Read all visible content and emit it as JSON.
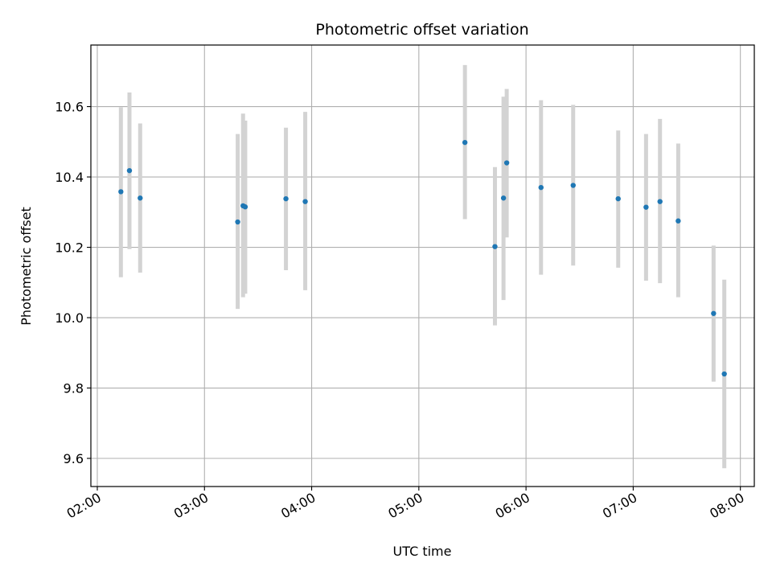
{
  "chart_data": {
    "type": "scatter",
    "title": "Photometric offset variation",
    "xlabel": "UTC time",
    "ylabel": "Photometric offset",
    "x_unit": "hours UTC",
    "xlim": [
      1.94,
      8.13
    ],
    "ylim": [
      9.52,
      10.775
    ],
    "grid": true,
    "legend": "none",
    "x_ticks": [
      {
        "value": 2,
        "label": "02:00"
      },
      {
        "value": 3,
        "label": "03:00"
      },
      {
        "value": 4,
        "label": "04:00"
      },
      {
        "value": 5,
        "label": "05:00"
      },
      {
        "value": 6,
        "label": "06:00"
      },
      {
        "value": 7,
        "label": "07:00"
      },
      {
        "value": 8,
        "label": "08:00"
      }
    ],
    "y_ticks": [
      {
        "value": 9.6,
        "label": "9.6"
      },
      {
        "value": 9.8,
        "label": "9.8"
      },
      {
        "value": 10.0,
        "label": "10.0"
      },
      {
        "value": 10.2,
        "label": "10.2"
      },
      {
        "value": 10.4,
        "label": "10.4"
      },
      {
        "value": 10.6,
        "label": "10.6"
      }
    ],
    "colors": {
      "point": "#1f77b4",
      "errorbar": "#d3d3d3",
      "grid": "#b0b0b0"
    },
    "points": [
      {
        "x": 2.22,
        "y": 10.358,
        "ylow": 10.115,
        "yhigh": 10.598
      },
      {
        "x": 2.3,
        "y": 10.418,
        "ylow": 10.195,
        "yhigh": 10.64
      },
      {
        "x": 2.4,
        "y": 10.34,
        "ylow": 10.128,
        "yhigh": 10.552
      },
      {
        "x": 3.31,
        "y": 10.272,
        "ylow": 10.025,
        "yhigh": 10.522
      },
      {
        "x": 3.36,
        "y": 10.318,
        "ylow": 10.058,
        "yhigh": 10.58
      },
      {
        "x": 3.38,
        "y": 10.315,
        "ylow": 10.068,
        "yhigh": 10.56
      },
      {
        "x": 3.76,
        "y": 10.338,
        "ylow": 10.135,
        "yhigh": 10.54
      },
      {
        "x": 3.94,
        "y": 10.33,
        "ylow": 10.078,
        "yhigh": 10.585
      },
      {
        "x": 5.43,
        "y": 10.498,
        "ylow": 10.28,
        "yhigh": 10.718
      },
      {
        "x": 5.71,
        "y": 10.202,
        "ylow": 9.978,
        "yhigh": 10.428
      },
      {
        "x": 5.79,
        "y": 10.34,
        "ylow": 10.05,
        "yhigh": 10.628
      },
      {
        "x": 5.82,
        "y": 10.44,
        "ylow": 10.228,
        "yhigh": 10.65
      },
      {
        "x": 6.14,
        "y": 10.37,
        "ylow": 10.122,
        "yhigh": 10.618
      },
      {
        "x": 6.44,
        "y": 10.376,
        "ylow": 10.148,
        "yhigh": 10.605
      },
      {
        "x": 6.86,
        "y": 10.338,
        "ylow": 10.142,
        "yhigh": 10.532
      },
      {
        "x": 7.12,
        "y": 10.314,
        "ylow": 10.105,
        "yhigh": 10.522
      },
      {
        "x": 7.25,
        "y": 10.33,
        "ylow": 10.098,
        "yhigh": 10.565
      },
      {
        "x": 7.42,
        "y": 10.275,
        "ylow": 10.058,
        "yhigh": 10.495
      },
      {
        "x": 7.75,
        "y": 10.012,
        "ylow": 9.818,
        "yhigh": 10.205
      },
      {
        "x": 7.85,
        "y": 9.84,
        "ylow": 9.572,
        "yhigh": 10.108
      }
    ]
  }
}
